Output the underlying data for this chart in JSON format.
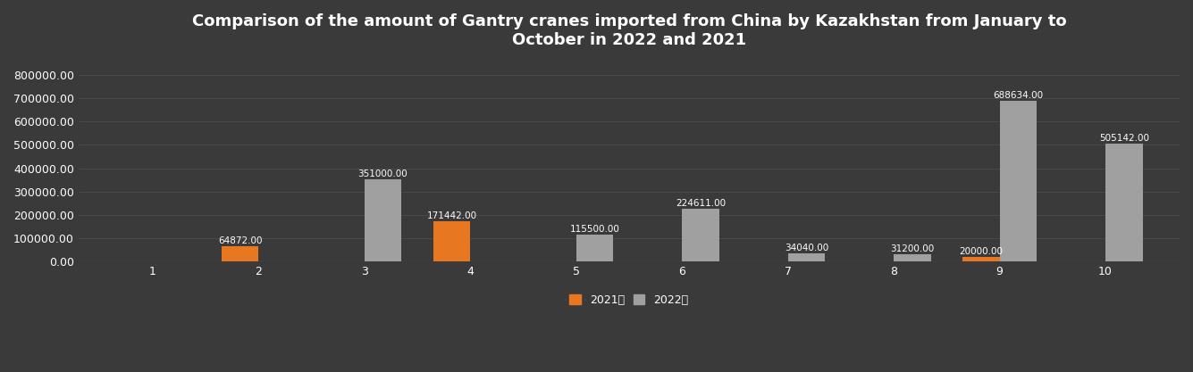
{
  "title": "Comparison of the amount of Gantry cranes imported from China by Kazakhstan from January to\nOctober in 2022 and 2021",
  "months": [
    1,
    2,
    3,
    4,
    5,
    6,
    7,
    8,
    9,
    10
  ],
  "data_2021": [
    0,
    64872.0,
    0,
    171442.0,
    0,
    0,
    0,
    0,
    20000.0,
    0
  ],
  "data_2022": [
    0,
    0,
    351000.0,
    0,
    115500.0,
    224611.0,
    34040.0,
    31200.0,
    688634.0,
    505142.0
  ],
  "color_2021": "#E87722",
  "color_2022": "#A0A0A0",
  "background_color": "#3a3a3a",
  "text_color": "#ffffff",
  "grid_color": "#505050",
  "ylim": [
    0,
    850000
  ],
  "bar_width": 0.35,
  "title_fontsize": 13,
  "label_fontsize": 7.5,
  "tick_fontsize": 9,
  "legend_2021": "2021年",
  "legend_2022": "2022年",
  "yticks": [
    0,
    100000,
    200000,
    300000,
    400000,
    500000,
    600000,
    700000,
    800000
  ]
}
